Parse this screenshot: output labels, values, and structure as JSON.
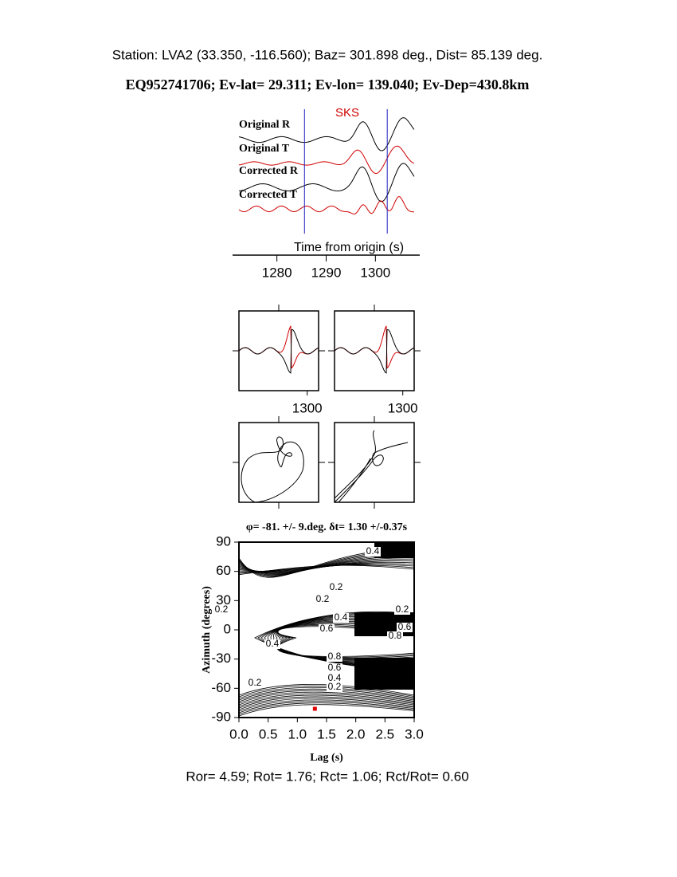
{
  "header": {
    "station": "Station: LVA2 (33.350, -116.560); Baz=  301.898 deg., Dist=   85.139 deg.",
    "event": "EQ952741706; Ev-lat=  29.311; Ev-lon= 139.040; Ev-Dep=430.8km"
  },
  "waveforms": {
    "phase": "SKS",
    "labels": [
      "Original R",
      "Original T",
      "Corrected R",
      "Corrected T"
    ],
    "xlabel": "Time from origin (s)",
    "xlim": [
      1271,
      1309
    ],
    "xticks": [
      1280,
      1290,
      1300
    ],
    "window": [
      1285.6,
      1302.4
    ]
  },
  "window_panels": [
    {
      "xlim": [
        1285.6,
        1302.4
      ],
      "xticks": [
        1300
      ]
    },
    {
      "xlim": [
        1285.6,
        1302.4
      ],
      "xticks": [
        1300
      ]
    }
  ],
  "contour": {
    "title": "φ= -81. +/- 9.deg. δt= 1.30 +/-0.37s",
    "xlabel": "Lag (s)",
    "ylabel": "Azimuth (degrees)",
    "xlim": [
      0,
      3
    ],
    "ylim": [
      -90,
      90
    ],
    "xticks": [
      {
        "value": 0,
        "label": "0.0"
      },
      0.5,
      {
        "value": 1,
        "label": "1.0"
      },
      1.5,
      {
        "value": 2,
        "label": "2.0"
      },
      2.5,
      {
        "value": 3,
        "label": "3.0"
      }
    ],
    "yticks": [
      90,
      60,
      30,
      0,
      -30,
      -60,
      -90
    ],
    "contour_labels": [
      "0.4",
      "0.2",
      "0.2",
      "0.2",
      "0.4",
      "0.6",
      "0.2",
      "0.6",
      "0.8",
      "0.4",
      "0.8",
      "0.6",
      "0.4",
      "0.2",
      "0.2"
    ],
    "best": {
      "lag": 1.3,
      "azimuth": -81
    },
    "best_color": "#e00000"
  },
  "footer": "Ror= 4.59; Rot= 1.76; Rct= 1.06; Rct/Rot= 0.60"
}
